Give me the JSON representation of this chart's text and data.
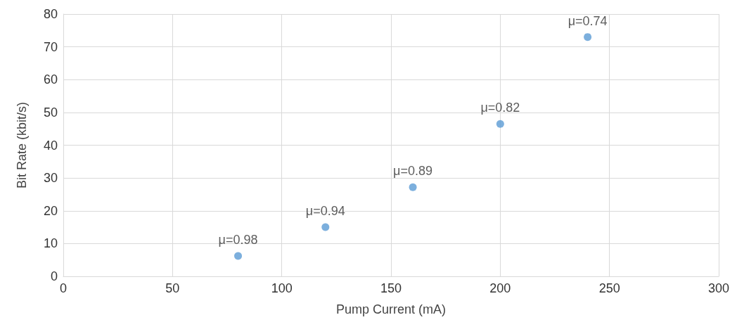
{
  "chart_data": {
    "type": "scatter",
    "xlabel": "Pump Current (mA)",
    "ylabel": "Bit Rate (kbit/s)",
    "x": [
      80,
      120,
      160,
      200,
      240
    ],
    "series": [
      {
        "color": "#5b9bd5",
        "values": [
          6.2,
          15,
          27.2,
          46.5,
          73
        ]
      }
    ],
    "annotations": [
      {
        "text": "μ=0.98",
        "x": 80,
        "y": 6.2
      },
      {
        "text": "μ=0.94",
        "x": 120,
        "y": 15
      },
      {
        "text": "μ=0.89",
        "x": 160,
        "y": 27.2
      },
      {
        "text": "μ=0.82",
        "x": 200,
        "y": 46.5
      },
      {
        "text": "μ=0.74",
        "x": 240,
        "y": 73
      }
    ],
    "xlim": [
      0,
      300
    ],
    "xticks": [
      0,
      50,
      100,
      150,
      200,
      250,
      300
    ],
    "ylim": [
      0,
      80
    ],
    "yticks": [
      0,
      10,
      20,
      30,
      40,
      50,
      60,
      70,
      80
    ],
    "grid": true,
    "marker": "circle"
  }
}
